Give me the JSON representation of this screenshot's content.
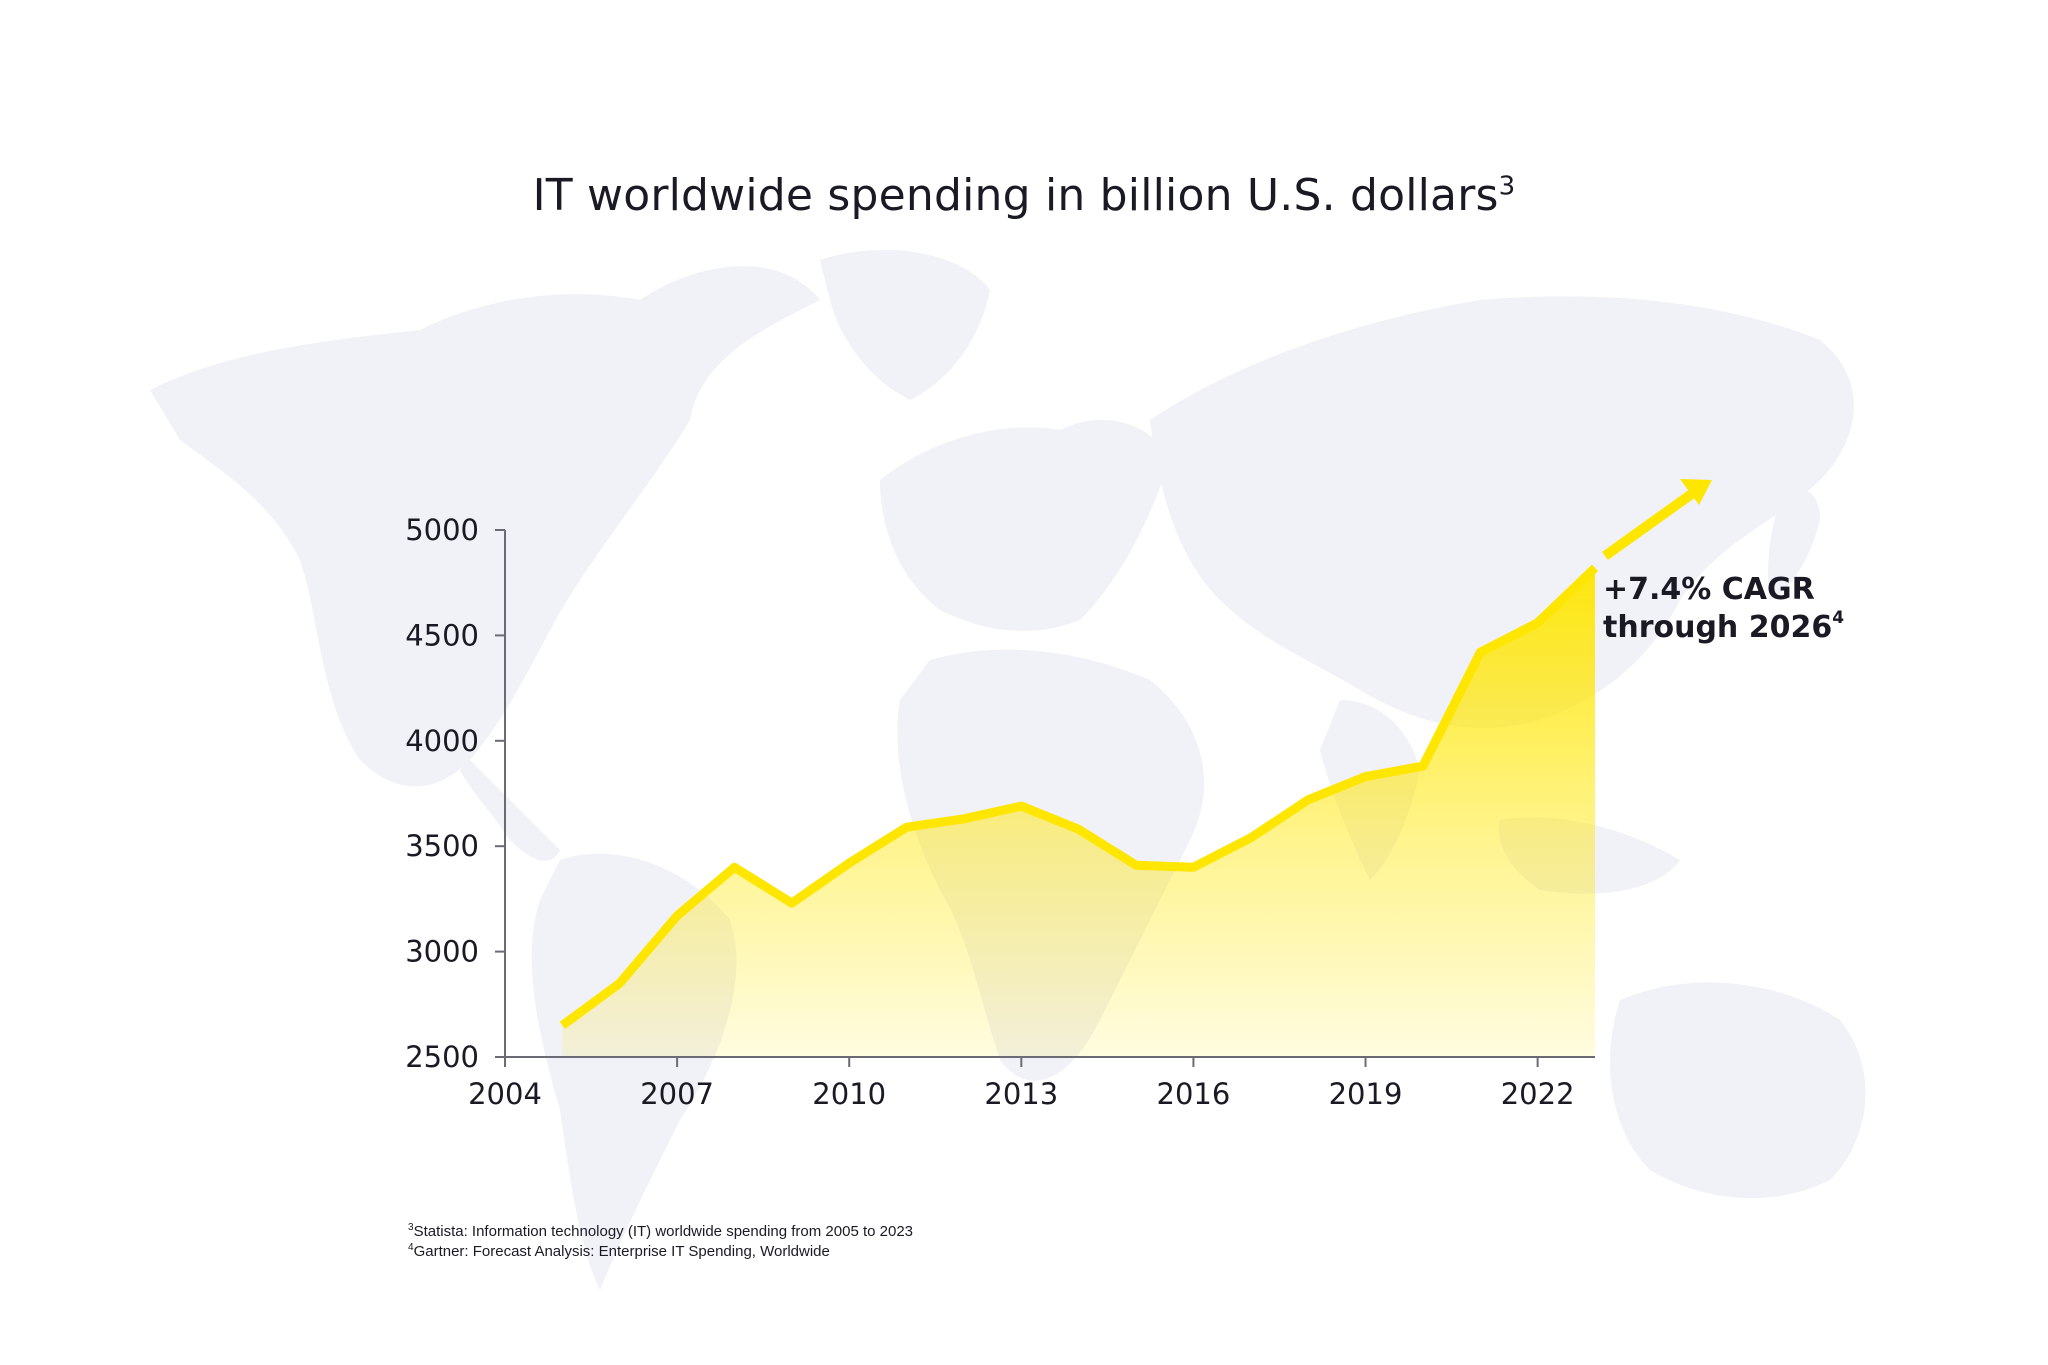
{
  "chart_data": {
    "type": "area",
    "title": "IT worldwide spending in billion U.S. dollars",
    "title_superscript": "3",
    "xlabel": "",
    "ylabel": "",
    "x_ticks": [
      2004,
      2007,
      2010,
      2013,
      2016,
      2019,
      2022
    ],
    "y_ticks": [
      2500,
      3000,
      3500,
      4000,
      4500,
      5000
    ],
    "xlim": [
      2004,
      2023
    ],
    "ylim": [
      2500,
      5000
    ],
    "grid": false,
    "legend": "none",
    "series": [
      {
        "x": [
          2005,
          2006,
          2007,
          2008,
          2009,
          2010,
          2011,
          2012,
          2013,
          2014,
          2015,
          2016,
          2017,
          2018,
          2019,
          2020,
          2021,
          2022,
          2023
        ],
        "values": [
          2650,
          2850,
          3170,
          3400,
          3230,
          3420,
          3590,
          3630,
          3690,
          3580,
          3410,
          3400,
          3540,
          3720,
          3830,
          3880,
          4420,
          4560,
          4820
        ]
      }
    ],
    "annotation": {
      "line1": "+7.4% CAGR",
      "line2": "through 2026",
      "superscript": "4"
    },
    "colors": {
      "line": "#ffe600",
      "fill": "#ffe600",
      "axis": "#6b6b75",
      "map": "#f1f1f7"
    }
  },
  "footnotes": [
    {
      "marker": "3",
      "text": "Statista: Information technology (IT) worldwide spending from 2005 to 2023"
    },
    {
      "marker": "4",
      "text": "Gartner: Forecast Analysis: Enterprise IT Spending, Worldwide"
    }
  ]
}
